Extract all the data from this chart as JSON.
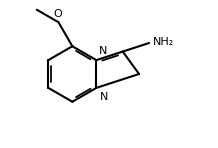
{
  "background_color": "#ffffff",
  "line_color": "#000000",
  "line_width": 1.5,
  "font_size": 8.0,
  "figsize": [
    2.18,
    1.48
  ],
  "dpi": 100,
  "n_label": "N",
  "o_label": "O",
  "nh2_label": "NH₂"
}
